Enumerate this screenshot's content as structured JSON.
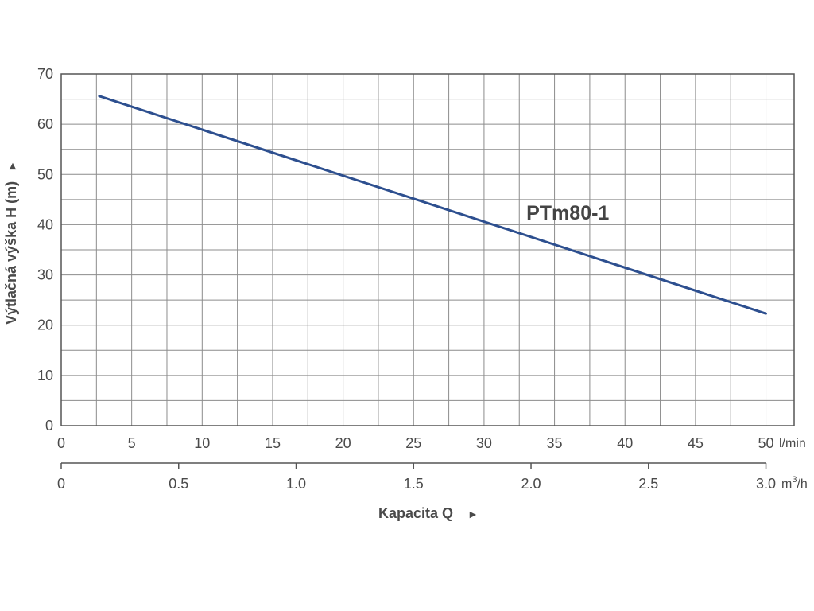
{
  "chart_data": {
    "type": "line",
    "x_unit": "l/min",
    "x_secondary_unit": "m³/h",
    "x_unit_base": "m",
    "x_unit_sup": "3",
    "x_unit_tail": "/h",
    "xlabel": "Kapacita Q",
    "ylabel": "Výtlačná výška H (m)",
    "arrow": "►",
    "xlim": [
      0,
      52
    ],
    "ylim": [
      0,
      70
    ],
    "x_ticks": [
      0,
      5,
      10,
      15,
      20,
      25,
      30,
      35,
      40,
      45,
      50
    ],
    "x_tick_labels": [
      "0",
      "5",
      "10",
      "15",
      "20",
      "25",
      "30",
      "35",
      "40",
      "45",
      "50"
    ],
    "x_secondary_ticks": [
      0,
      0.5,
      1.0,
      1.5,
      2.0,
      2.5,
      3.0
    ],
    "x_secondary_tick_labels": [
      "0",
      "0.5",
      "1.0",
      "1.5",
      "2.0",
      "2.5",
      "3.0"
    ],
    "y_ticks": [
      0,
      10,
      20,
      30,
      40,
      50,
      60,
      70
    ],
    "y_tick_labels": [
      "0",
      "10",
      "20",
      "30",
      "40",
      "50",
      "60",
      "70"
    ],
    "grid": true,
    "series": [
      {
        "name": "PTm80-1",
        "color": "#2d4f8f",
        "x": [
          2.7,
          50
        ],
        "y": [
          65.6,
          22.3
        ],
        "label_at": [
          33,
          41
        ]
      }
    ]
  }
}
